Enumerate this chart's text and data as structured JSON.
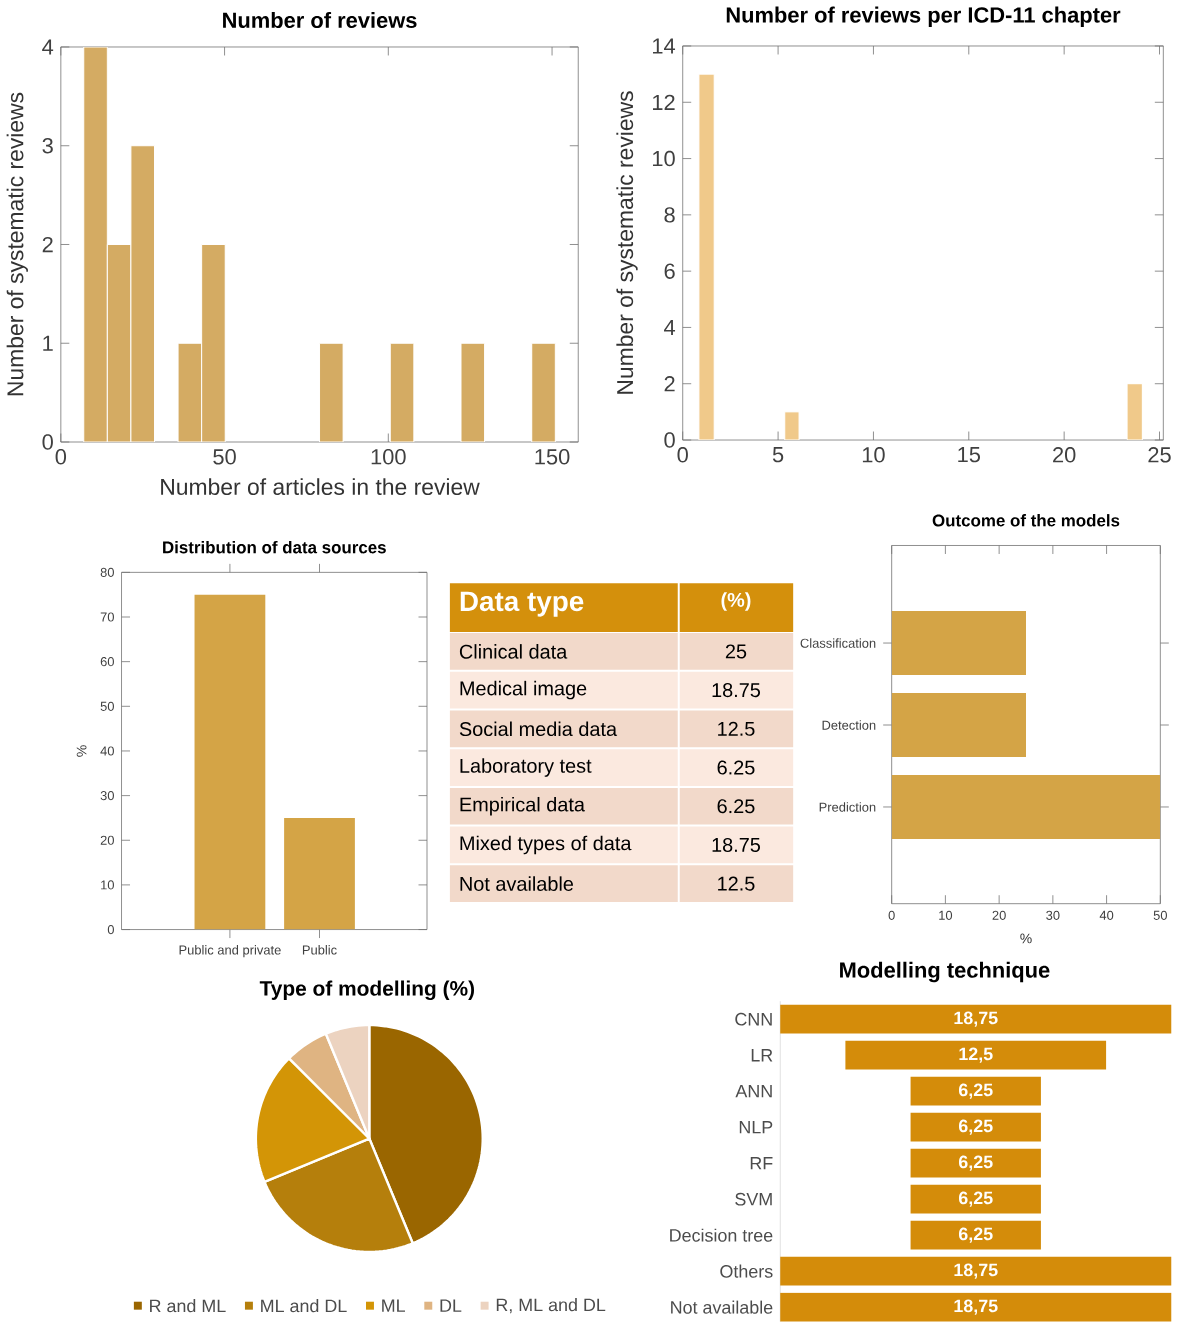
{
  "chart_data": [
    {
      "type": "histogram",
      "title": "Number of reviews",
      "xlabel": "Number of articles in the review",
      "ylabel": "Number of systematic reviews",
      "bins": [
        7,
        14.2,
        21.4,
        28.6,
        35.8,
        43,
        50.2,
        57.4,
        64.6,
        71.8,
        79,
        86.2,
        93.4,
        100.6,
        107.8,
        115,
        122.2,
        129.4,
        136.6,
        143.8,
        151
      ],
      "values": [
        4,
        2,
        3,
        0,
        1,
        2,
        0,
        0,
        0,
        0,
        1,
        0,
        0,
        1,
        0,
        0,
        1,
        0,
        0,
        1
      ],
      "color": "#d4ab63",
      "xlim": [
        0,
        158
      ],
      "ylim": [
        0,
        4
      ],
      "xticks": [
        0,
        50,
        100,
        150
      ],
      "yticks": [
        0,
        1,
        2,
        3,
        4
      ]
    },
    {
      "type": "histogram",
      "title": "Number of reviews per ICD-11 chapter",
      "ylabel": "Number of systematic reviews",
      "bins": [
        0.85,
        1.65,
        5.35,
        6.1,
        23.3,
        24.1
      ],
      "values": [
        13,
        0,
        1,
        0,
        2
      ],
      "color": "#f0c98a",
      "xlim": [
        0,
        25.2
      ],
      "ylim": [
        0,
        14
      ],
      "xticks": [
        0,
        5,
        10,
        15,
        20,
        25
      ],
      "yticks": [
        0,
        2,
        4,
        6,
        8,
        10,
        12,
        14
      ]
    },
    {
      "type": "bar",
      "title": "Distribution of data sources",
      "ylabel": "%",
      "categories": [
        "Public and private",
        "Public"
      ],
      "values": [
        75,
        25
      ],
      "color": "#d4a446",
      "ylim": [
        0,
        80
      ],
      "yticks": [
        0,
        10,
        20,
        30,
        40,
        50,
        60,
        70,
        80
      ]
    },
    {
      "type": "other",
      "xlabel": "Data type",
      "ylabel": "(%)",
      "categories": [
        "Clinical data",
        "Medical image",
        "Social media data",
        "Laboratory test",
        "Empirical data",
        "Mixed types of data",
        "Not available"
      ],
      "values": [
        25,
        18.75,
        12.5,
        6.25,
        6.25,
        18.75,
        12.5
      ],
      "data_labels": true,
      "colors": [
        "#f2d9ca",
        "#fbe9df",
        "#f2d9ca",
        "#fbe9df",
        "#f2d9ca",
        "#fbe9df",
        "#f2d9ca"
      ]
    },
    {
      "type": "bar",
      "orientation": "horizontal",
      "title": "Outcome of the models",
      "xlabel": "%",
      "categories": [
        "Classification",
        "Detection",
        "Prediction"
      ],
      "values": [
        25,
        25,
        50
      ],
      "color": "#d4a446",
      "xlim": [
        0,
        50
      ],
      "xticks": [
        0,
        10,
        20,
        30,
        40,
        50
      ]
    },
    {
      "type": "pie",
      "title": "Type of modelling (%)",
      "categories": [
        "R and ML",
        "ML and DL",
        "ML",
        "DL",
        "R, ML and DL"
      ],
      "values": [
        43.75,
        25,
        18.75,
        6.25,
        6.25
      ],
      "colors": [
        "#9a6600",
        "#b57f0c",
        "#d39506",
        "#dfb482",
        "#ecd3c0"
      ],
      "legend": "bottom"
    },
    {
      "type": "other",
      "title": "Modelling technique",
      "categories": [
        "CNN",
        "LR",
        "ANN",
        "NLP",
        "RF",
        "SVM",
        "Decision tree",
        "Others",
        "Not available"
      ],
      "values": [
        18.75,
        12.5,
        6.25,
        6.25,
        6.25,
        6.25,
        6.25,
        18.75,
        18.75
      ],
      "value_labels": [
        "18,75",
        "12,5",
        "6,25",
        "6,25",
        "6,25",
        "6,25",
        "6,25",
        "18,75",
        "18,75"
      ],
      "color": "#d48c0a"
    }
  ]
}
